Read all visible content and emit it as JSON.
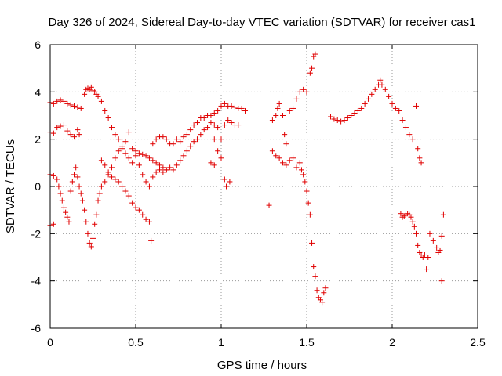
{
  "chart_data": {
    "type": "scatter",
    "title": "Day 326 of 2024, Sidereal Day-to-day VTEC variation (SDTVAR) for receiver cas1",
    "xlabel": "GPS time / hours",
    "ylabel": "SDTVAR / TECUs",
    "xlim": [
      0,
      2.5
    ],
    "ylim": [
      -6,
      6
    ],
    "xticks": [
      0,
      0.5,
      1,
      1.5,
      2,
      2.5
    ],
    "xtick_labels": [
      "0",
      "0.5",
      "1",
      "1.5",
      "2",
      "2.5"
    ],
    "yticks": [
      -6,
      -4,
      -2,
      0,
      2,
      4,
      6
    ],
    "ytick_labels": [
      "-6",
      "-4",
      "-2",
      "0",
      "2",
      "4",
      "6"
    ],
    "grid": true,
    "marker": "+",
    "series": [
      {
        "name": "SDTVAR",
        "color": "#e00000",
        "points": [
          [
            0.0,
            3.55
          ],
          [
            0.02,
            3.5
          ],
          [
            0.04,
            3.6
          ],
          [
            0.06,
            3.65
          ],
          [
            0.08,
            3.6
          ],
          [
            0.1,
            3.5
          ],
          [
            0.12,
            3.45
          ],
          [
            0.14,
            3.4
          ],
          [
            0.16,
            3.35
          ],
          [
            0.18,
            3.3
          ],
          [
            0.2,
            3.9
          ],
          [
            0.21,
            4.1
          ],
          [
            0.22,
            4.15
          ],
          [
            0.23,
            4.1
          ],
          [
            0.24,
            4.2
          ],
          [
            0.25,
            4.05
          ],
          [
            0.26,
            4.0
          ],
          [
            0.27,
            3.9
          ],
          [
            0.28,
            3.8
          ],
          [
            0.3,
            3.6
          ],
          [
            0.32,
            3.2
          ],
          [
            0.34,
            2.9
          ],
          [
            0.36,
            2.5
          ],
          [
            0.38,
            2.2
          ],
          [
            0.0,
            2.3
          ],
          [
            0.02,
            2.25
          ],
          [
            0.04,
            2.5
          ],
          [
            0.06,
            2.55
          ],
          [
            0.08,
            2.6
          ],
          [
            0.1,
            2.35
          ],
          [
            0.12,
            2.2
          ],
          [
            0.14,
            2.1
          ],
          [
            0.16,
            2.4
          ],
          [
            0.17,
            2.2
          ],
          [
            0.0,
            0.5
          ],
          [
            0.02,
            0.45
          ],
          [
            0.04,
            0.3
          ],
          [
            0.05,
            0.0
          ],
          [
            0.06,
            -0.3
          ],
          [
            0.07,
            -0.6
          ],
          [
            0.08,
            -0.9
          ],
          [
            0.09,
            -1.1
          ],
          [
            0.1,
            -1.3
          ],
          [
            0.11,
            -1.5
          ],
          [
            0.0,
            -1.65
          ],
          [
            0.02,
            -1.6
          ],
          [
            0.12,
            -0.2
          ],
          [
            0.13,
            0.2
          ],
          [
            0.14,
            0.5
          ],
          [
            0.15,
            0.8
          ],
          [
            0.16,
            0.4
          ],
          [
            0.17,
            0.0
          ],
          [
            0.18,
            -0.3
          ],
          [
            0.19,
            -0.6
          ],
          [
            0.2,
            -1.0
          ],
          [
            0.21,
            -1.5
          ],
          [
            0.22,
            -2.0
          ],
          [
            0.23,
            -2.4
          ],
          [
            0.24,
            -2.55
          ],
          [
            0.25,
            -2.2
          ],
          [
            0.26,
            -1.6
          ],
          [
            0.27,
            -1.2
          ],
          [
            0.28,
            -0.6
          ],
          [
            0.29,
            -0.3
          ],
          [
            0.3,
            0.0
          ],
          [
            0.32,
            0.2
          ],
          [
            0.34,
            0.5
          ],
          [
            0.36,
            0.8
          ],
          [
            0.38,
            1.2
          ],
          [
            0.4,
            1.5
          ],
          [
            0.42,
            1.6
          ],
          [
            0.44,
            1.4
          ],
          [
            0.46,
            1.2
          ],
          [
            0.48,
            1.0
          ],
          [
            0.5,
            1.5
          ],
          [
            0.52,
            1.4
          ],
          [
            0.54,
            1.35
          ],
          [
            0.56,
            1.3
          ],
          [
            0.58,
            1.2
          ],
          [
            0.6,
            1.1
          ],
          [
            0.62,
            1.0
          ],
          [
            0.64,
            0.9
          ],
          [
            0.66,
            0.8
          ],
          [
            0.68,
            0.7
          ],
          [
            0.3,
            1.1
          ],
          [
            0.32,
            0.9
          ],
          [
            0.34,
            0.6
          ],
          [
            0.36,
            0.4
          ],
          [
            0.38,
            0.3
          ],
          [
            0.4,
            0.2
          ],
          [
            0.42,
            0.0
          ],
          [
            0.44,
            -0.2
          ],
          [
            0.46,
            -0.4
          ],
          [
            0.48,
            -0.7
          ],
          [
            0.5,
            -0.9
          ],
          [
            0.52,
            -1.0
          ],
          [
            0.54,
            -1.2
          ],
          [
            0.56,
            -1.4
          ],
          [
            0.58,
            -1.5
          ],
          [
            0.59,
            -2.3
          ],
          [
            0.4,
            2.0
          ],
          [
            0.42,
            1.7
          ],
          [
            0.44,
            1.9
          ],
          [
            0.46,
            2.3
          ],
          [
            0.48,
            1.6
          ],
          [
            0.5,
            1.3
          ],
          [
            0.52,
            0.9
          ],
          [
            0.54,
            0.5
          ],
          [
            0.56,
            0.2
          ],
          [
            0.58,
            0.0
          ],
          [
            0.6,
            0.4
          ],
          [
            0.62,
            0.6
          ],
          [
            0.64,
            0.7
          ],
          [
            0.66,
            0.6
          ],
          [
            0.68,
            0.7
          ],
          [
            0.7,
            0.8
          ],
          [
            0.72,
            0.7
          ],
          [
            0.74,
            0.9
          ],
          [
            0.76,
            1.1
          ],
          [
            0.78,
            1.3
          ],
          [
            0.6,
            1.8
          ],
          [
            0.62,
            2.0
          ],
          [
            0.64,
            2.1
          ],
          [
            0.66,
            2.1
          ],
          [
            0.68,
            2.0
          ],
          [
            0.7,
            1.8
          ],
          [
            0.72,
            1.8
          ],
          [
            0.74,
            2.0
          ],
          [
            0.76,
            1.9
          ],
          [
            0.78,
            2.1
          ],
          [
            0.8,
            2.2
          ],
          [
            0.82,
            2.4
          ],
          [
            0.84,
            2.6
          ],
          [
            0.86,
            2.7
          ],
          [
            0.88,
            2.9
          ],
          [
            0.9,
            2.9
          ],
          [
            0.92,
            3.0
          ],
          [
            0.94,
            3.0
          ],
          [
            0.96,
            3.1
          ],
          [
            0.98,
            3.2
          ],
          [
            0.8,
            1.5
          ],
          [
            0.82,
            1.7
          ],
          [
            0.84,
            1.9
          ],
          [
            0.86,
            2.0
          ],
          [
            0.88,
            2.2
          ],
          [
            0.9,
            2.4
          ],
          [
            0.92,
            2.5
          ],
          [
            0.94,
            2.7
          ],
          [
            0.96,
            2.6
          ],
          [
            0.98,
            2.5
          ],
          [
            1.0,
            3.4
          ],
          [
            1.02,
            3.5
          ],
          [
            1.04,
            3.4
          ],
          [
            1.06,
            3.4
          ],
          [
            1.08,
            3.35
          ],
          [
            1.1,
            3.3
          ],
          [
            1.12,
            3.3
          ],
          [
            1.14,
            3.2
          ],
          [
            0.96,
            2.0
          ],
          [
            0.98,
            1.5
          ],
          [
            1.0,
            1.2
          ],
          [
            1.02,
            2.6
          ],
          [
            1.04,
            2.8
          ],
          [
            1.06,
            2.7
          ],
          [
            1.08,
            2.6
          ],
          [
            1.1,
            2.6
          ],
          [
            0.94,
            1.0
          ],
          [
            0.96,
            0.9
          ],
          [
            1.02,
            0.3
          ],
          [
            1.03,
            0.0
          ],
          [
            1.05,
            0.2
          ],
          [
            1.0,
            2.0
          ],
          [
            1.28,
            -0.8
          ],
          [
            1.3,
            2.8
          ],
          [
            1.32,
            3.0
          ],
          [
            1.33,
            3.3
          ],
          [
            1.34,
            3.5
          ],
          [
            1.36,
            3.0
          ],
          [
            1.37,
            2.2
          ],
          [
            1.38,
            1.8
          ],
          [
            1.4,
            3.2
          ],
          [
            1.42,
            3.3
          ],
          [
            1.44,
            3.7
          ],
          [
            1.46,
            4.0
          ],
          [
            1.48,
            4.1
          ],
          [
            1.5,
            4.0
          ],
          [
            1.52,
            4.8
          ],
          [
            1.53,
            5.0
          ],
          [
            1.54,
            5.5
          ],
          [
            1.55,
            5.6
          ],
          [
            1.3,
            1.5
          ],
          [
            1.32,
            1.3
          ],
          [
            1.34,
            1.2
          ],
          [
            1.36,
            1.0
          ],
          [
            1.38,
            0.9
          ],
          [
            1.4,
            1.1
          ],
          [
            1.42,
            1.2
          ],
          [
            1.44,
            0.8
          ],
          [
            1.46,
            1.0
          ],
          [
            1.47,
            0.7
          ],
          [
            1.48,
            0.5
          ],
          [
            1.49,
            0.2
          ],
          [
            1.5,
            -0.2
          ],
          [
            1.51,
            -0.7
          ],
          [
            1.52,
            -1.2
          ],
          [
            1.53,
            -2.4
          ],
          [
            1.54,
            -3.4
          ],
          [
            1.55,
            -3.8
          ],
          [
            1.56,
            -4.4
          ],
          [
            1.57,
            -4.7
          ],
          [
            1.58,
            -4.8
          ],
          [
            1.59,
            -4.9
          ],
          [
            1.6,
            -4.5
          ],
          [
            1.61,
            -4.3
          ],
          [
            1.64,
            2.95
          ],
          [
            1.66,
            2.85
          ],
          [
            1.68,
            2.8
          ],
          [
            1.7,
            2.75
          ],
          [
            1.72,
            2.8
          ],
          [
            1.74,
            2.9
          ],
          [
            1.76,
            3.0
          ],
          [
            1.78,
            3.1
          ],
          [
            1.8,
            3.2
          ],
          [
            1.82,
            3.3
          ],
          [
            1.84,
            3.5
          ],
          [
            1.86,
            3.7
          ],
          [
            1.88,
            3.9
          ],
          [
            1.9,
            4.1
          ],
          [
            1.92,
            4.3
          ],
          [
            1.93,
            4.5
          ],
          [
            1.94,
            4.3
          ],
          [
            1.96,
            4.1
          ],
          [
            1.98,
            3.8
          ],
          [
            2.0,
            3.5
          ],
          [
            2.02,
            3.3
          ],
          [
            2.04,
            3.2
          ],
          [
            2.06,
            2.8
          ],
          [
            2.08,
            2.5
          ],
          [
            2.1,
            2.2
          ],
          [
            2.12,
            2.0
          ],
          [
            2.14,
            3.4
          ],
          [
            2.15,
            1.6
          ],
          [
            2.16,
            1.2
          ],
          [
            2.17,
            1.0
          ],
          [
            2.05,
            -1.15
          ],
          [
            2.06,
            -1.3
          ],
          [
            2.07,
            -1.25
          ],
          [
            2.08,
            -1.2
          ],
          [
            2.09,
            -1.15
          ],
          [
            2.1,
            -1.2
          ],
          [
            2.11,
            -1.3
          ],
          [
            2.12,
            -1.5
          ],
          [
            2.13,
            -1.7
          ],
          [
            2.14,
            -2.0
          ],
          [
            2.15,
            -2.5
          ],
          [
            2.16,
            -2.8
          ],
          [
            2.17,
            -2.9
          ],
          [
            2.18,
            -3.0
          ],
          [
            2.19,
            -2.9
          ],
          [
            2.2,
            -3.5
          ],
          [
            2.21,
            -3.0
          ],
          [
            2.22,
            -2.0
          ],
          [
            2.24,
            -2.3
          ],
          [
            2.26,
            -2.6
          ],
          [
            2.27,
            -2.8
          ],
          [
            2.28,
            -2.7
          ],
          [
            2.29,
            -2.1
          ],
          [
            2.3,
            -1.2
          ],
          [
            2.29,
            -4.0
          ]
        ]
      }
    ]
  }
}
